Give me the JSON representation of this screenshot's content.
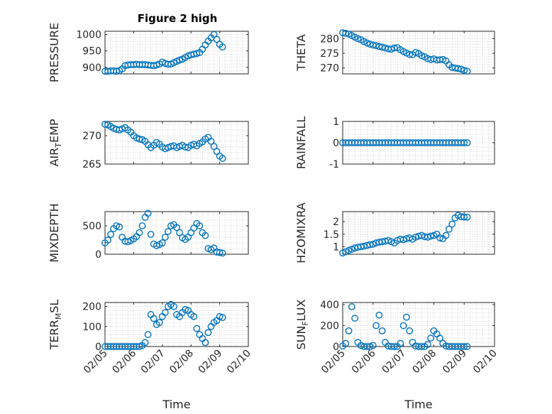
{
  "figure_title": "Figure 2 high",
  "colors": {
    "marker": "#0072bd",
    "axis": "#262626",
    "grid": "#cfcfcf"
  },
  "chart_data": [
    {
      "type": "scatter",
      "id": "pressure",
      "title": "Figure 2 high",
      "ylabel": "PRESSURE",
      "ylim": [
        880,
        1010
      ],
      "yticks": [
        900,
        950,
        1000
      ],
      "ytick_labels": [
        "900",
        "950",
        "1000"
      ],
      "xlim": [
        0,
        5
      ],
      "xticks": [
        0,
        1,
        2,
        3,
        4,
        5
      ],
      "grid": true,
      "x": [
        0.0,
        0.1,
        0.2,
        0.3,
        0.4,
        0.5,
        0.6,
        0.7,
        0.8,
        0.9,
        1.0,
        1.1,
        1.2,
        1.3,
        1.4,
        1.5,
        1.6,
        1.7,
        1.8,
        1.9,
        2.0,
        2.1,
        2.2,
        2.3,
        2.4,
        2.5,
        2.6,
        2.7,
        2.8,
        2.9,
        3.0,
        3.1,
        3.2,
        3.3,
        3.4,
        3.5,
        3.6,
        3.7,
        3.8,
        3.9,
        4.0,
        4.1
      ],
      "y": [
        888,
        888,
        889,
        889,
        888,
        890,
        895,
        905,
        907,
        908,
        908,
        909,
        908,
        908,
        908,
        907,
        906,
        905,
        907,
        910,
        916,
        912,
        909,
        910,
        914,
        918,
        922,
        925,
        930,
        935,
        938,
        940,
        942,
        945,
        955,
        968,
        980,
        990,
        1000,
        985,
        970,
        962
      ]
    },
    {
      "type": "scatter",
      "id": "theta",
      "ylabel": "THETA",
      "ylim": [
        268,
        282.5
      ],
      "yticks": [
        270,
        275,
        280
      ],
      "ytick_labels": [
        "270",
        "275",
        "280"
      ],
      "xlim": [
        0,
        5
      ],
      "xticks": [
        0,
        1,
        2,
        3,
        4,
        5
      ],
      "grid": true,
      "x": [
        0.0,
        0.1,
        0.2,
        0.3,
        0.4,
        0.5,
        0.6,
        0.7,
        0.8,
        0.9,
        1.0,
        1.1,
        1.2,
        1.3,
        1.4,
        1.5,
        1.6,
        1.7,
        1.8,
        1.9,
        2.0,
        2.1,
        2.2,
        2.3,
        2.4,
        2.5,
        2.6,
        2.7,
        2.8,
        2.9,
        3.0,
        3.1,
        3.2,
        3.3,
        3.4,
        3.5,
        3.6,
        3.7,
        3.8,
        3.9,
        4.0,
        4.1
      ],
      "y": [
        282,
        281.8,
        281.5,
        281,
        280.5,
        280,
        279.6,
        279,
        278.5,
        278.1,
        277.8,
        277.6,
        277.3,
        277.1,
        276.8,
        276.5,
        276.4,
        276.8,
        276.9,
        276.2,
        275.6,
        275.1,
        274.6,
        274.5,
        275.3,
        274.9,
        274.2,
        273.8,
        273.2,
        272.9,
        273.1,
        272.7,
        272.8,
        272.9,
        272.4,
        271.1,
        270.2,
        270.0,
        269.8,
        269.6,
        269.2,
        268.9
      ]
    },
    {
      "type": "scatter",
      "id": "air_temp",
      "ylabel": "AIR_TEMP",
      "ylim": [
        265,
        272.5
      ],
      "yticks": [
        265,
        270
      ],
      "ytick_labels": [
        "265",
        "270"
      ],
      "xlim": [
        0,
        5
      ],
      "xticks": [
        0,
        1,
        2,
        3,
        4,
        5
      ],
      "grid": true,
      "x": [
        0.0,
        0.1,
        0.2,
        0.3,
        0.4,
        0.5,
        0.6,
        0.7,
        0.8,
        0.9,
        1.0,
        1.1,
        1.2,
        1.3,
        1.4,
        1.5,
        1.6,
        1.7,
        1.8,
        1.9,
        2.0,
        2.1,
        2.2,
        2.3,
        2.4,
        2.5,
        2.6,
        2.7,
        2.8,
        2.9,
        3.0,
        3.1,
        3.2,
        3.3,
        3.4,
        3.5,
        3.6,
        3.7,
        3.8,
        3.9,
        4.0,
        4.1
      ],
      "y": [
        272.0,
        271.9,
        271.6,
        271.3,
        271.1,
        271.0,
        271.2,
        271.4,
        271.0,
        270.6,
        270.0,
        269.6,
        269.4,
        269.3,
        269.0,
        268.4,
        267.9,
        268.3,
        268.8,
        268.5,
        268.0,
        267.7,
        267.9,
        268.1,
        268.2,
        267.9,
        268.1,
        268.3,
        268.0,
        267.9,
        268.3,
        268.5,
        268.2,
        268.6,
        268.9,
        269.4,
        269.7,
        269.0,
        268.1,
        267.2,
        266.4,
        266.0
      ]
    },
    {
      "type": "scatter",
      "id": "rainfall",
      "ylabel": "RAINFALL",
      "ylim": [
        -1,
        1
      ],
      "yticks": [
        -1,
        0,
        1
      ],
      "ytick_labels": [
        "-1",
        "0",
        "1"
      ],
      "xlim": [
        0,
        5
      ],
      "xticks": [
        0,
        1,
        2,
        3,
        4,
        5
      ],
      "grid": true,
      "x": [
        0.0,
        0.1,
        0.2,
        0.3,
        0.4,
        0.5,
        0.6,
        0.7,
        0.8,
        0.9,
        1.0,
        1.1,
        1.2,
        1.3,
        1.4,
        1.5,
        1.6,
        1.7,
        1.8,
        1.9,
        2.0,
        2.1,
        2.2,
        2.3,
        2.4,
        2.5,
        2.6,
        2.7,
        2.8,
        2.9,
        3.0,
        3.1,
        3.2,
        3.3,
        3.4,
        3.5,
        3.6,
        3.7,
        3.8,
        3.9,
        4.0,
        4.1
      ],
      "y": [
        0,
        0,
        0,
        0,
        0,
        0,
        0,
        0,
        0,
        0,
        0,
        0,
        0,
        0,
        0,
        0,
        0,
        0,
        0,
        0,
        0,
        0,
        0,
        0,
        0,
        0,
        0,
        0,
        0,
        0,
        0,
        0,
        0,
        0,
        0,
        0,
        0,
        0,
        0,
        0,
        0,
        0
      ]
    },
    {
      "type": "scatter",
      "id": "mixdepth",
      "ylabel": "MIXDEPTH",
      "ylim": [
        0,
        750
      ],
      "yticks": [
        0,
        500
      ],
      "ytick_labels": [
        "0",
        "500"
      ],
      "xlim": [
        0,
        5
      ],
      "xticks": [
        0,
        1,
        2,
        3,
        4,
        5
      ],
      "grid": true,
      "x": [
        0.0,
        0.1,
        0.2,
        0.3,
        0.4,
        0.5,
        0.6,
        0.7,
        0.8,
        0.9,
        1.0,
        1.1,
        1.2,
        1.3,
        1.4,
        1.5,
        1.6,
        1.7,
        1.8,
        1.9,
        2.0,
        2.1,
        2.2,
        2.3,
        2.4,
        2.5,
        2.6,
        2.7,
        2.8,
        2.9,
        3.0,
        3.1,
        3.2,
        3.3,
        3.4,
        3.5,
        3.6,
        3.7,
        3.8,
        3.9,
        4.0,
        4.1
      ],
      "y": [
        200,
        250,
        350,
        450,
        500,
        480,
        300,
        230,
        220,
        240,
        270,
        310,
        380,
        500,
        650,
        720,
        350,
        180,
        150,
        170,
        200,
        300,
        400,
        500,
        520,
        470,
        380,
        290,
        260,
        300,
        380,
        460,
        540,
        500,
        380,
        330,
        100,
        80,
        110,
        40,
        30,
        20
      ]
    },
    {
      "type": "scatter",
      "id": "h2omixra",
      "ylabel": "H2OMIXRA",
      "ylim": [
        0.7,
        2.4
      ],
      "yticks": [
        1,
        1.5,
        2
      ],
      "ytick_labels": [
        "1",
        "1.5",
        "2"
      ],
      "xlim": [
        0,
        5
      ],
      "xticks": [
        0,
        1,
        2,
        3,
        4,
        5
      ],
      "grid": true,
      "x": [
        0.0,
        0.1,
        0.2,
        0.3,
        0.4,
        0.5,
        0.6,
        0.7,
        0.8,
        0.9,
        1.0,
        1.1,
        1.2,
        1.3,
        1.4,
        1.5,
        1.6,
        1.7,
        1.8,
        1.9,
        2.0,
        2.1,
        2.2,
        2.3,
        2.4,
        2.5,
        2.6,
        2.7,
        2.8,
        2.9,
        3.0,
        3.1,
        3.2,
        3.3,
        3.4,
        3.5,
        3.6,
        3.7,
        3.8,
        3.9,
        4.0,
        4.1
      ],
      "y": [
        0.75,
        0.8,
        0.85,
        0.9,
        0.95,
        0.98,
        1.0,
        1.02,
        1.05,
        1.08,
        1.1,
        1.15,
        1.18,
        1.2,
        1.22,
        1.25,
        1.2,
        1.15,
        1.25,
        1.3,
        1.28,
        1.32,
        1.35,
        1.3,
        1.38,
        1.42,
        1.45,
        1.4,
        1.38,
        1.42,
        1.45,
        1.5,
        1.35,
        1.32,
        1.45,
        1.7,
        1.9,
        2.15,
        2.25,
        2.2,
        2.18,
        2.18
      ]
    },
    {
      "type": "scatter",
      "id": "terr_msl",
      "ylabel": "TERR_MSL",
      "ylim": [
        0,
        220
      ],
      "yticks": [
        0,
        100,
        200
      ],
      "ytick_labels": [
        "0",
        "100",
        "200"
      ],
      "xlim": [
        0,
        5
      ],
      "xticks": [
        0,
        1,
        2,
        3,
        4,
        5
      ],
      "xtick_labels": [
        "02/05",
        "02/06",
        "02/07",
        "02/08",
        "02/09",
        "02/10"
      ],
      "xlabel": "Time",
      "grid": true,
      "x": [
        0.0,
        0.1,
        0.2,
        0.3,
        0.4,
        0.5,
        0.6,
        0.7,
        0.8,
        0.9,
        1.0,
        1.1,
        1.2,
        1.3,
        1.4,
        1.5,
        1.6,
        1.7,
        1.8,
        1.9,
        2.0,
        2.1,
        2.2,
        2.3,
        2.4,
        2.5,
        2.6,
        2.7,
        2.8,
        2.9,
        3.0,
        3.1,
        3.2,
        3.3,
        3.4,
        3.5,
        3.6,
        3.7,
        3.8,
        3.9,
        4.0,
        4.1
      ],
      "y": [
        0,
        0,
        0,
        0,
        0,
        0,
        0,
        0,
        0,
        0,
        0,
        0,
        0,
        5,
        20,
        60,
        160,
        140,
        110,
        120,
        150,
        170,
        200,
        210,
        200,
        160,
        150,
        170,
        185,
        180,
        160,
        150,
        90,
        60,
        40,
        20,
        70,
        100,
        120,
        130,
        150,
        145
      ]
    },
    {
      "type": "scatter",
      "id": "sun_flux",
      "ylabel": "SUN_FLUX",
      "ylim": [
        0,
        420
      ],
      "yticks": [
        0,
        200,
        400
      ],
      "ytick_labels": [
        "0",
        "200",
        "400"
      ],
      "xlim": [
        0,
        5
      ],
      "xticks": [
        0,
        1,
        2,
        3,
        4,
        5
      ],
      "xtick_labels": [
        "02/05",
        "02/06",
        "02/07",
        "02/08",
        "02/09",
        "02/10"
      ],
      "xlabel": "Time",
      "grid": true,
      "x": [
        0.0,
        0.1,
        0.2,
        0.3,
        0.4,
        0.5,
        0.6,
        0.7,
        0.8,
        0.9,
        1.0,
        1.1,
        1.2,
        1.3,
        1.4,
        1.5,
        1.6,
        1.7,
        1.8,
        1.9,
        2.0,
        2.1,
        2.2,
        2.3,
        2.4,
        2.5,
        2.6,
        2.7,
        2.8,
        2.9,
        3.0,
        3.1,
        3.2,
        3.3,
        3.4,
        3.5,
        3.6,
        3.7,
        3.8,
        3.9,
        4.0,
        4.1
      ],
      "y": [
        5,
        30,
        150,
        380,
        270,
        40,
        10,
        0,
        0,
        0,
        10,
        200,
        300,
        150,
        40,
        5,
        0,
        0,
        0,
        30,
        200,
        280,
        150,
        40,
        5,
        0,
        0,
        0,
        20,
        80,
        150,
        120,
        80,
        30,
        5,
        0,
        0,
        0,
        0,
        0,
        0,
        0
      ]
    }
  ]
}
